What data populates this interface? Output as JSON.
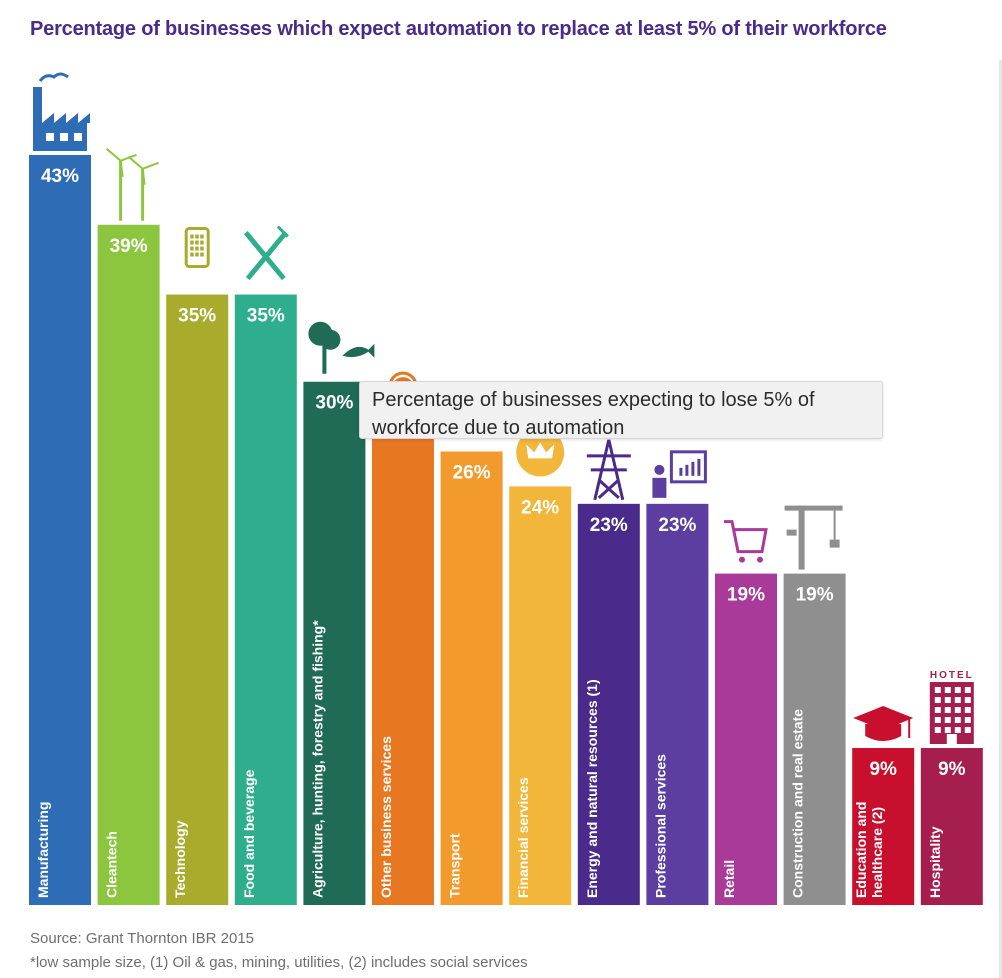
{
  "page": {
    "title": "Percentage of businesses which expect automation to replace at least 5% of their workforce",
    "tooltip": "Percentage of businesses expecting to lose 5% of workforce due to automation",
    "source": "Source: Grant Thornton IBR 2015",
    "footnote": "*low sample size, (1) Oil & gas, mining, utilities, (2) includes social services"
  },
  "chart_data": {
    "type": "bar",
    "title": "Percentage of businesses which expect automation to replace at least 5% of their workforce",
    "categories": [
      "Manufacturing",
      "Cleantech",
      "Technology",
      "Food and beverage",
      "Agriculture, hunting, forestry and fishing*",
      "Other business services",
      "Transport",
      "Financial services",
      "Energy and natural resources (1)",
      "Professional services",
      "Retail",
      "Construction and real estate",
      "Education and healthcare (2)",
      "Hospitality"
    ],
    "values": [
      43,
      39,
      35,
      35,
      30,
      27,
      26,
      24,
      23,
      23,
      19,
      19,
      9,
      9
    ],
    "value_labels": [
      "43%",
      "39%",
      "35%",
      "35%",
      "30%",
      "",
      "26%",
      "24%",
      "23%",
      "23%",
      "19%",
      "19%",
      "9%",
      "9%"
    ],
    "colors": [
      "#2e6db5",
      "#8cc63f",
      "#a9ab2c",
      "#2fae8e",
      "#1f6b55",
      "#e87722",
      "#f39a2c",
      "#f2b63a",
      "#4a2a8a",
      "#5b3ea0",
      "#a93a9a",
      "#8f8f8f",
      "#c8102e",
      "#a61e4d"
    ],
    "icons": [
      "factory-icon",
      "wind-turbine-icon",
      "mobile-phone-icon",
      "fork-knife-icon",
      "tree-fish-icon",
      "call-center-agent-icon",
      "",
      "crown-coin-icon",
      "power-pylon-icon",
      "presenter-chart-icon",
      "shopping-cart-icon",
      "crane-icon",
      "graduation-cap-icon",
      "hotel-icon"
    ],
    "hotel_sign": "HOTEL",
    "ylim": [
      0,
      43
    ],
    "grid": false,
    "legend": "none"
  }
}
